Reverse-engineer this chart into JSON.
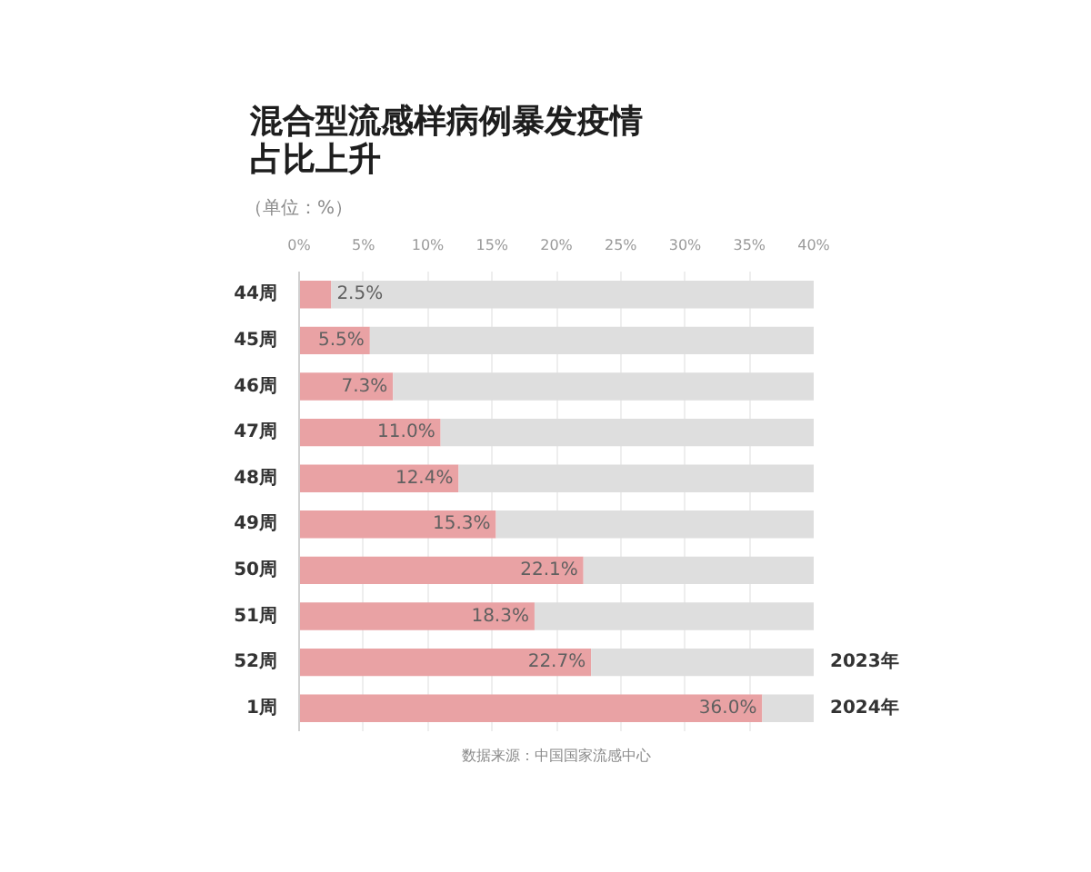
{
  "chart_data": {
    "type": "bar",
    "orientation": "horizontal",
    "stacked": true,
    "title": "混合型流感样病例暴发疫情占比上升",
    "subtitle": "（单位：%）",
    "categories": [
      "44周",
      "45周",
      "46周",
      "47周",
      "48周",
      "49周",
      "50周",
      "51周",
      "52周",
      "1周"
    ],
    "series": [
      {
        "color": "#e9a2a4",
        "values": [
          2.5,
          5.5,
          7.3,
          11.0,
          12.4,
          15.3,
          22.1,
          18.3,
          22.7,
          36.0
        ],
        "value_labels": [
          "2.5%",
          "5.5%",
          "7.3%",
          "11.0%",
          "12.4%",
          "15.3%",
          "22.1%",
          "18.3%",
          "22.7%",
          "36.0%"
        ]
      },
      {
        "color": "#dedede",
        "values": [
          37.5,
          34.5,
          32.7,
          29.0,
          27.6,
          24.7,
          17.9,
          21.7,
          17.3,
          4.0
        ]
      }
    ],
    "xlim": [
      0,
      40
    ],
    "xticks": [
      {
        "value": 0,
        "label": "0%"
      },
      {
        "value": 5,
        "label": "5%"
      },
      {
        "value": 10,
        "label": "10%"
      },
      {
        "value": 15,
        "label": "15%"
      },
      {
        "value": 20,
        "label": "20%"
      },
      {
        "value": 25,
        "label": "25%"
      },
      {
        "value": 30,
        "label": "30%"
      },
      {
        "value": 35,
        "label": "35%"
      },
      {
        "value": 40,
        "label": "40%"
      }
    ],
    "grid": "x",
    "annotations": [
      {
        "text": "2023年",
        "x": 40,
        "y": "52周"
      },
      {
        "text": "2024年",
        "x": 40,
        "y": "1周"
      },
      "数据来源：中国国家流感中心"
    ]
  }
}
